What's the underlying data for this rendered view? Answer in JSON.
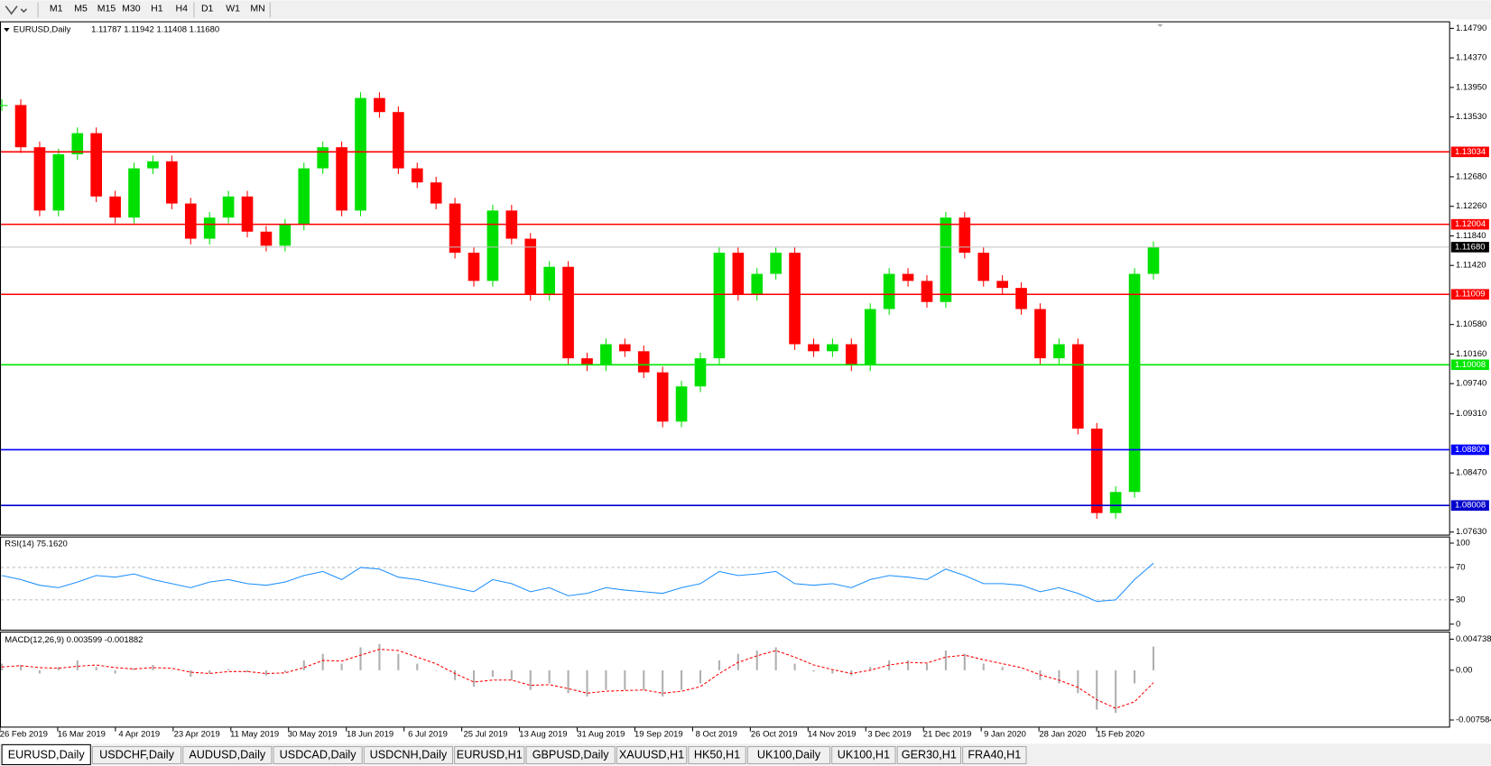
{
  "toolbar": {
    "timeframes": [
      "M1",
      "M5",
      "M15",
      "M30",
      "H1",
      "H4",
      "D1",
      "W1",
      "MN"
    ]
  },
  "main": {
    "symbol": "EURUSD,Daily",
    "ohlc": "1.11787 1.11942 1.11408 1.11680",
    "ylim": [
      1.0758,
      1.1489
    ],
    "yticks": [
      {
        "value": 1.1479,
        "label": "1.14790"
      },
      {
        "value": 1.1437,
        "label": "1.14370"
      },
      {
        "value": 1.1395,
        "label": "1.13950"
      },
      {
        "value": 1.1353,
        "label": "1.13530"
      },
      {
        "value": 1.1268,
        "label": "1.12680"
      },
      {
        "value": 1.1226,
        "label": "1.12260"
      },
      {
        "value": 1.1184,
        "label": "1.11840"
      },
      {
        "value": 1.1142,
        "label": "1.11420"
      },
      {
        "value": 1.1058,
        "label": "1.10580"
      },
      {
        "value": 1.1016,
        "label": "1.10160"
      },
      {
        "value": 1.0974,
        "label": "1.09740"
      },
      {
        "value": 1.0931,
        "label": "1.09310"
      },
      {
        "value": 1.0847,
        "label": "1.08470"
      },
      {
        "value": 1.0763,
        "label": "1.07630"
      }
    ],
    "levels": [
      {
        "value": 1.13034,
        "color": "#ff0000"
      },
      {
        "value": 1.12004,
        "color": "#ff0000"
      },
      {
        "value": 1.11009,
        "color": "#ff0000"
      },
      {
        "value": 1.10008,
        "color": "#00e600"
      },
      {
        "value": 1.088,
        "label": "1.08800",
        "color": "#0000ff"
      },
      {
        "value": 1.08008,
        "color": "#0000cc"
      }
    ],
    "current": {
      "value": 1.1168,
      "label": "1.11680"
    },
    "bull_color": "#00e000",
    "bear_color": "#ff0000",
    "closes": [
      1.137,
      1.131,
      1.122,
      1.13,
      1.133,
      1.124,
      1.121,
      1.128,
      1.129,
      1.123,
      1.118,
      1.121,
      1.124,
      1.119,
      1.117,
      1.12,
      1.128,
      1.131,
      1.122,
      1.138,
      1.136,
      1.128,
      1.126,
      1.123,
      1.116,
      1.112,
      1.122,
      1.118,
      1.11,
      1.114,
      1.101,
      1.1,
      1.103,
      1.102,
      1.099,
      1.092,
      1.097,
      1.101,
      1.116,
      1.11,
      1.113,
      1.116,
      1.103,
      1.102,
      1.103,
      1.1,
      1.108,
      1.113,
      1.112,
      1.109,
      1.121,
      1.116,
      1.112,
      1.111,
      1.108,
      1.101,
      1.103,
      1.091,
      1.079,
      1.082,
      1.113,
      1.1168
    ],
    "dates": [
      "26 Feb 2019",
      "16 Mar 2019",
      "4 Apr 2019",
      "23 Apr 2019",
      "11 May 2019",
      "30 May 2019",
      "18 Jun 2019",
      "6 Jul 2019",
      "25 Jul 2019",
      "13 Aug 2019",
      "31 Aug 2019",
      "19 Sep 2019",
      "8 Oct 2019",
      "26 Oct 2019",
      "14 Nov 2019",
      "3 Dec 2019",
      "21 Dec 2019",
      "9 Jan 2020",
      "28 Jan 2020",
      "15 Feb 2020"
    ]
  },
  "rsi": {
    "header": "RSI(14) 75.1620",
    "ylim": [
      -8,
      107
    ],
    "yticks": [
      100,
      70,
      30,
      0
    ],
    "levels": [
      70,
      30
    ],
    "color": "#1e90ff",
    "values": [
      60,
      55,
      48,
      45,
      52,
      60,
      58,
      62,
      55,
      50,
      45,
      52,
      55,
      50,
      48,
      52,
      60,
      65,
      55,
      70,
      68,
      58,
      55,
      50,
      45,
      40,
      55,
      50,
      40,
      45,
      35,
      38,
      45,
      42,
      40,
      38,
      45,
      50,
      65,
      60,
      62,
      65,
      50,
      48,
      50,
      45,
      55,
      60,
      58,
      55,
      68,
      60,
      50,
      50,
      48,
      40,
      45,
      38,
      28,
      30,
      55,
      75.16
    ]
  },
  "macd": {
    "header": "MACD(12,26,9) 0.003599 -0.001882",
    "ylim": [
      -0.00874,
      0.00575
    ],
    "yticks": [
      0.004738,
      {
        "value": 0,
        "label": "0.00"
      },
      -0.007584
    ],
    "hist_color": "#b0b0b0",
    "signal_color": "#ff0000",
    "values": [
      0.001,
      0.0008,
      -0.0005,
      0.0005,
      0.0015,
      0.0005,
      -0.0005,
      0.0003,
      0.0008,
      0,
      -0.001,
      -0.0005,
      0.0002,
      -0.0003,
      -0.0008,
      -0.0003,
      0.0015,
      0.0025,
      0.001,
      0.0035,
      0.004,
      0.0025,
      0.001,
      0,
      -0.0015,
      -0.0025,
      -0.001,
      -0.0015,
      -0.003,
      -0.002,
      -0.0035,
      -0.004,
      -0.003,
      -0.003,
      -0.003,
      -0.004,
      -0.003,
      -0.002,
      0.0015,
      0.0025,
      0.003,
      0.0035,
      0.001,
      -0.0002,
      -0.0005,
      -0.0008,
      0.0005,
      0.0015,
      0.0015,
      0.001,
      0.003,
      0.0025,
      0.001,
      0.0005,
      0,
      -0.0015,
      -0.002,
      -0.0035,
      -0.006,
      -0.0065,
      -0.002,
      0.0036
    ],
    "signal": [
      0.0005,
      0.0007,
      0.0004,
      0.0003,
      0.0006,
      0.0008,
      0.0004,
      0.0002,
      0.0004,
      0.0003,
      -0.0003,
      -0.0005,
      -0.0002,
      -0.0002,
      -0.0005,
      -0.0004,
      0.0004,
      0.0015,
      0.0014,
      0.0023,
      0.0032,
      0.003,
      0.002,
      0.001,
      -0.0005,
      -0.0018,
      -0.0015,
      -0.0015,
      -0.0023,
      -0.0022,
      -0.0028,
      -0.0035,
      -0.0032,
      -0.0031,
      -0.003,
      -0.0035,
      -0.0032,
      -0.0025,
      -0.0005,
      0.0012,
      0.0022,
      0.003,
      0.002,
      0.0008,
      0.0001,
      -0.0005,
      0,
      0.0008,
      0.0012,
      0.0011,
      0.002,
      0.0023,
      0.0016,
      0.001,
      0.0004,
      -0.0007,
      -0.0015,
      -0.0026,
      -0.0045,
      -0.0058,
      -0.0048,
      -0.0019
    ]
  },
  "tabs": {
    "items": [
      "EURUSD,Daily",
      "USDCHF,Daily",
      "AUDUSD,Daily",
      "USDCAD,Daily",
      "USDCNH,Daily",
      "EURUSD,H1",
      "GBPUSD,Daily",
      "XAUUSD,H1",
      "HK50,H1",
      "UK100,Daily",
      "UK100,H1",
      "GER30,H1",
      "FRA40,H1"
    ],
    "active": 0
  }
}
